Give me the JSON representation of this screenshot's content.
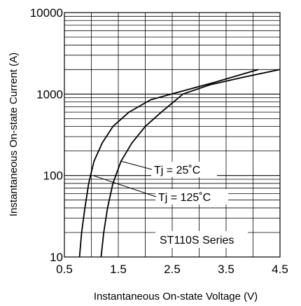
{
  "chart_data": {
    "type": "line",
    "title": "",
    "xlabel": "Instantaneous On-state Voltage (V)",
    "ylabel": "Instantaneous On-state Current (A)",
    "xlim": [
      0.5,
      4.5
    ],
    "ylim": [
      10,
      10000
    ],
    "yscale": "log",
    "grid": true,
    "x_ticks": [
      "0.5",
      "1.5",
      "2.5",
      "3.5",
      "4.5"
    ],
    "y_ticks": [
      "10",
      "100",
      "1000",
      "10000"
    ],
    "series": [
      {
        "name": "Tj = 25˚C",
        "x": [
          1.18,
          1.23,
          1.3,
          1.4,
          1.55,
          1.75,
          2.0,
          2.3,
          2.7,
          3.2,
          3.8,
          4.5
        ],
        "y": [
          10,
          20,
          40,
          80,
          150,
          250,
          400,
          600,
          1000,
          1300,
          1600,
          2000
        ]
      },
      {
        "name": "Tj = 125˚C",
        "x": [
          0.78,
          0.82,
          0.88,
          0.95,
          1.05,
          1.2,
          1.4,
          1.7,
          2.1,
          2.6,
          3.3,
          4.1
        ],
        "y": [
          10,
          20,
          40,
          80,
          150,
          250,
          400,
          600,
          850,
          1050,
          1400,
          2000
        ]
      }
    ],
    "annotations": [
      "Tj = 25˚C",
      "Tj = 125˚C",
      "ST110S Series"
    ]
  }
}
